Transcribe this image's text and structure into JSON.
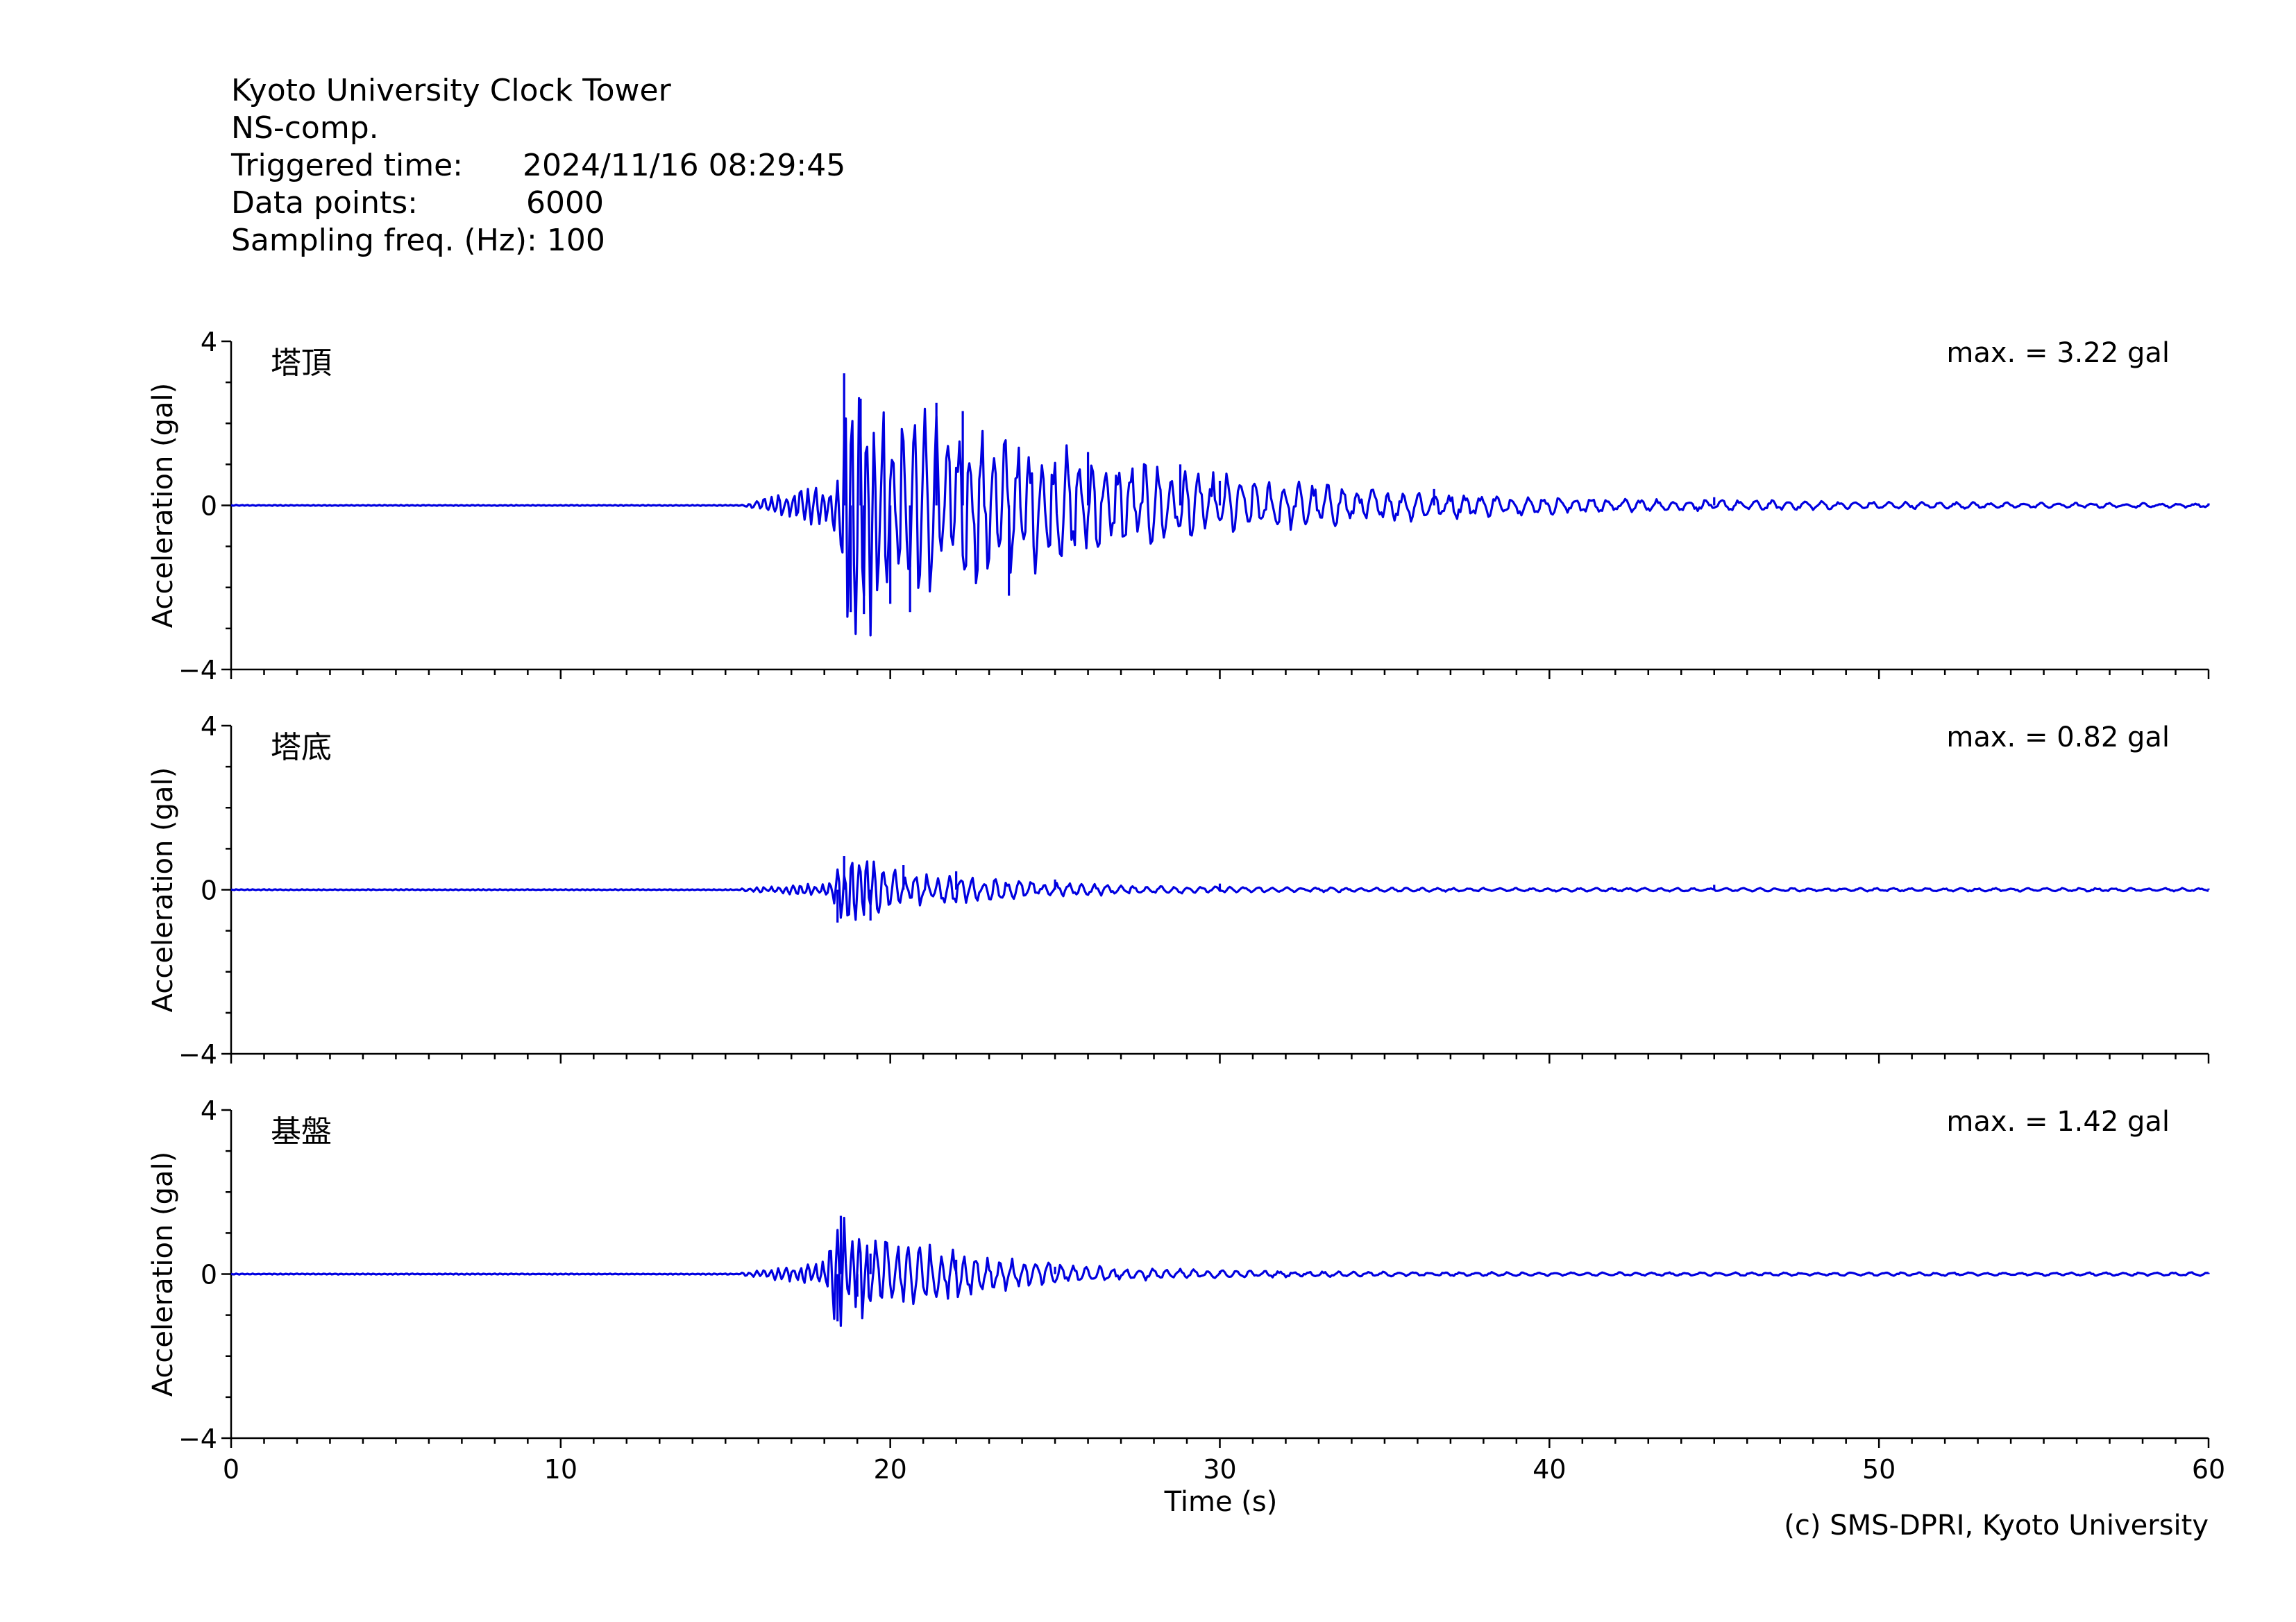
{
  "header": {
    "station": "Kyoto University Clock Tower",
    "component": "NS-comp.",
    "triggered_label": "Triggered time:",
    "triggered_value": "2024/11/16 08:29:45",
    "points_label": "Data points:",
    "points_value": "6000",
    "freq_label": "Sampling freq. (Hz):",
    "freq_value": "100"
  },
  "copyright": "(c) SMS-DPRI, Kyoto University",
  "chart_data": {
    "type": "line",
    "xlabel": "Time (s)",
    "xlim": [
      0,
      60
    ],
    "xticks": [
      0,
      10,
      20,
      30,
      40,
      50,
      60
    ],
    "ylabel": "Acceleration (gal)",
    "ylim": [
      -4,
      4
    ],
    "yticks": [
      -4,
      0,
      4
    ],
    "line_color": "#0000e0",
    "panels": [
      {
        "name": "塔頂",
        "max_label": "max. = 3.22 gal",
        "max_value": 3.22,
        "onset_time": 15.5,
        "peak_time": 18.7,
        "peaks": [
          {
            "t": 18.6,
            "v": 3.22
          },
          {
            "t": 18.8,
            "v": -2.6
          },
          {
            "t": 19.2,
            "v": -2.65
          },
          {
            "t": 19.1,
            "v": 2.6
          },
          {
            "t": 20.0,
            "v": -2.4
          },
          {
            "t": 20.6,
            "v": -2.6
          },
          {
            "t": 21.4,
            "v": 2.5
          },
          {
            "t": 22.2,
            "v": 2.3
          },
          {
            "t": 23.6,
            "v": -2.2
          },
          {
            "t": 26.0,
            "v": 1.3
          },
          {
            "t": 28.8,
            "v": 1.0
          },
          {
            "t": 30.0,
            "v": 0.6
          },
          {
            "t": 36.5,
            "v": 0.4
          },
          {
            "t": 45.0,
            "v": 0.2
          },
          {
            "t": 60.0,
            "v": 0.05
          }
        ]
      },
      {
        "name": "塔底",
        "max_label": "max. = 0.82 gal",
        "max_value": 0.82,
        "onset_time": 15.5,
        "peak_time": 18.6,
        "peaks": [
          {
            "t": 18.6,
            "v": 0.82
          },
          {
            "t": 18.4,
            "v": -0.8
          },
          {
            "t": 19.4,
            "v": -0.75
          },
          {
            "t": 20.4,
            "v": 0.6
          },
          {
            "t": 22.0,
            "v": 0.45
          },
          {
            "t": 25.0,
            "v": 0.25
          },
          {
            "t": 30.0,
            "v": 0.15
          },
          {
            "t": 45.0,
            "v": 0.12
          },
          {
            "t": 60.0,
            "v": 0.03
          }
        ]
      },
      {
        "name": "基盤",
        "max_label": "max. = 1.42 gal",
        "max_value": 1.42,
        "onset_time": 15.5,
        "peak_time": 18.4,
        "peaks": [
          {
            "t": 18.5,
            "v": 1.42
          },
          {
            "t": 18.4,
            "v": -1.15
          },
          {
            "t": 19.0,
            "v": -0.55
          },
          {
            "t": 19.4,
            "v": 0.5
          },
          {
            "t": 22.0,
            "v": 0.35
          },
          {
            "t": 25.0,
            "v": 0.18
          },
          {
            "t": 30.0,
            "v": 0.08
          },
          {
            "t": 60.0,
            "v": 0.03
          }
        ]
      }
    ]
  }
}
